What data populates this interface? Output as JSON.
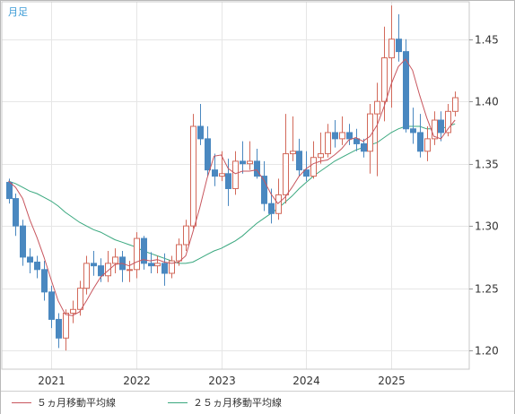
{
  "chart_title": "月足",
  "colors": {
    "up_candle": "#d2695a",
    "down_candle": "#4a88c0",
    "ma5": "#c8565e",
    "ma25": "#3aa87f",
    "grid": "#e6e6e6"
  },
  "legend": {
    "ma5_label": "５ヵ月移動平均線",
    "ma25_label": "２５ヵ月移動平均線"
  },
  "chart_data": {
    "type": "candlestick",
    "title": "月足",
    "y_axis_position": "right",
    "ylim": [
      1.185,
      1.48
    ],
    "y_ticks": [
      1.2,
      1.25,
      1.3,
      1.35,
      1.4,
      1.45
    ],
    "y_tick_labels": [
      "1.20",
      "1.25",
      "1.30",
      "1.35",
      "1.40",
      "1.45"
    ],
    "x_ticks": [
      "2021",
      "2022",
      "2023",
      "2024",
      "2025"
    ],
    "grid": true,
    "months": [
      "2020-07",
      "2020-08",
      "2020-09",
      "2020-10",
      "2020-11",
      "2020-12",
      "2021-01",
      "2021-02",
      "2021-03",
      "2021-04",
      "2021-05",
      "2021-06",
      "2021-07",
      "2021-08",
      "2021-09",
      "2021-10",
      "2021-11",
      "2021-12",
      "2022-01",
      "2022-02",
      "2022-03",
      "2022-04",
      "2022-05",
      "2022-06",
      "2022-07",
      "2022-08",
      "2022-09",
      "2022-10",
      "2022-11",
      "2022-12",
      "2023-01",
      "2023-02",
      "2023-03",
      "2023-04",
      "2023-05",
      "2023-06",
      "2023-07",
      "2023-08",
      "2023-09",
      "2023-10",
      "2023-11",
      "2023-12",
      "2024-01",
      "2024-02",
      "2024-03",
      "2024-04",
      "2024-05",
      "2024-06",
      "2024-07",
      "2024-08",
      "2024-09",
      "2024-10",
      "2024-11",
      "2024-12",
      "2025-01",
      "2025-02",
      "2025-03",
      "2025-04",
      "2025-05",
      "2025-06",
      "2025-07",
      "2025-08",
      "2025-09",
      "2025-10"
    ],
    "open": [
      1.335,
      1.322,
      1.3,
      1.275,
      1.271,
      1.265,
      1.247,
      1.225,
      1.21,
      1.23,
      1.233,
      1.25,
      1.27,
      1.268,
      1.26,
      1.27,
      1.275,
      1.265,
      1.265,
      1.29,
      1.27,
      1.268,
      1.27,
      1.262,
      1.272,
      1.285,
      1.3,
      1.38,
      1.37,
      1.345,
      1.34,
      1.342,
      1.33,
      1.352,
      1.35,
      1.352,
      1.34,
      1.318,
      1.31,
      1.325,
      1.358,
      1.36,
      1.345,
      1.34,
      1.355,
      1.358,
      1.375,
      1.37,
      1.375,
      1.37,
      1.366,
      1.36,
      1.39,
      1.4,
      1.435,
      1.45,
      1.44,
      1.378,
      1.375,
      1.36,
      1.37,
      1.385,
      1.375,
      1.392
    ],
    "close": [
      1.322,
      1.3,
      1.275,
      1.271,
      1.265,
      1.247,
      1.225,
      1.21,
      1.23,
      1.233,
      1.25,
      1.27,
      1.268,
      1.26,
      1.27,
      1.275,
      1.265,
      1.265,
      1.29,
      1.27,
      1.268,
      1.27,
      1.262,
      1.272,
      1.285,
      1.3,
      1.38,
      1.37,
      1.345,
      1.34,
      1.342,
      1.33,
      1.352,
      1.35,
      1.352,
      1.34,
      1.318,
      1.31,
      1.325,
      1.358,
      1.36,
      1.345,
      1.34,
      1.355,
      1.358,
      1.375,
      1.37,
      1.375,
      1.37,
      1.366,
      1.36,
      1.39,
      1.4,
      1.435,
      1.45,
      1.44,
      1.378,
      1.375,
      1.36,
      1.37,
      1.385,
      1.375,
      1.392,
      1.403
    ],
    "high": [
      1.338,
      1.326,
      1.305,
      1.282,
      1.276,
      1.272,
      1.252,
      1.23,
      1.233,
      1.24,
      1.256,
      1.276,
      1.28,
      1.274,
      1.28,
      1.282,
      1.28,
      1.272,
      1.295,
      1.292,
      1.279,
      1.276,
      1.278,
      1.276,
      1.29,
      1.305,
      1.39,
      1.398,
      1.38,
      1.358,
      1.36,
      1.354,
      1.36,
      1.368,
      1.368,
      1.362,
      1.352,
      1.33,
      1.338,
      1.39,
      1.388,
      1.37,
      1.36,
      1.368,
      1.375,
      1.382,
      1.385,
      1.388,
      1.382,
      1.378,
      1.37,
      1.398,
      1.415,
      1.46,
      1.477,
      1.47,
      1.45,
      1.395,
      1.39,
      1.38,
      1.392,
      1.392,
      1.398,
      1.408
    ],
    "low": [
      1.318,
      1.292,
      1.268,
      1.262,
      1.258,
      1.24,
      1.218,
      1.202,
      1.2,
      1.222,
      1.228,
      1.245,
      1.26,
      1.255,
      1.255,
      1.262,
      1.255,
      1.255,
      1.258,
      1.265,
      1.262,
      1.262,
      1.252,
      1.258,
      1.268,
      1.28,
      1.298,
      1.365,
      1.34,
      1.332,
      1.336,
      1.316,
      1.325,
      1.342,
      1.345,
      1.338,
      1.312,
      1.302,
      1.305,
      1.318,
      1.352,
      1.34,
      1.336,
      1.338,
      1.35,
      1.355,
      1.363,
      1.365,
      1.365,
      1.36,
      1.355,
      1.342,
      1.34,
      1.384,
      1.395,
      1.432,
      1.375,
      1.366,
      1.355,
      1.352,
      1.365,
      1.368,
      1.372,
      1.388
    ],
    "series": [
      {
        "name": "５ヵ月移動平均線",
        "values": [
          1.336,
          1.331,
          1.322,
          1.305,
          1.291,
          1.275,
          1.257,
          1.24,
          1.229,
          1.228,
          1.231,
          1.24,
          1.25,
          1.259,
          1.264,
          1.269,
          1.27,
          1.268,
          1.271,
          1.273,
          1.272,
          1.273,
          1.271,
          1.27,
          1.271,
          1.276,
          1.295,
          1.315,
          1.338,
          1.356,
          1.357,
          1.346,
          1.342,
          1.344,
          1.344,
          1.345,
          1.337,
          1.326,
          1.318,
          1.323,
          1.331,
          1.34,
          1.346,
          1.35,
          1.352,
          1.353,
          1.357,
          1.362,
          1.369,
          1.371,
          1.368,
          1.372,
          1.381,
          1.396,
          1.414,
          1.428,
          1.434,
          1.425,
          1.405,
          1.387,
          1.372,
          1.37,
          1.378,
          1.385
        ]
      },
      {
        "name": "２５ヵ月移動平均線",
        "values": [
          1.336,
          1.334,
          1.331,
          1.328,
          1.326,
          1.323,
          1.32,
          1.316,
          1.311,
          1.307,
          1.303,
          1.3,
          1.297,
          1.295,
          1.292,
          1.289,
          1.287,
          1.285,
          1.283,
          1.28,
          1.278,
          1.276,
          1.274,
          1.272,
          1.27,
          1.27,
          1.271,
          1.274,
          1.277,
          1.28,
          1.282,
          1.285,
          1.288,
          1.292,
          1.297,
          1.302,
          1.306,
          1.31,
          1.314,
          1.319,
          1.324,
          1.33,
          1.335,
          1.34,
          1.344,
          1.348,
          1.352,
          1.355,
          1.358,
          1.361,
          1.363,
          1.365,
          1.367,
          1.371,
          1.375,
          1.378,
          1.38,
          1.38,
          1.38,
          1.378,
          1.378,
          1.378,
          1.38,
          1.382
        ]
      }
    ]
  }
}
